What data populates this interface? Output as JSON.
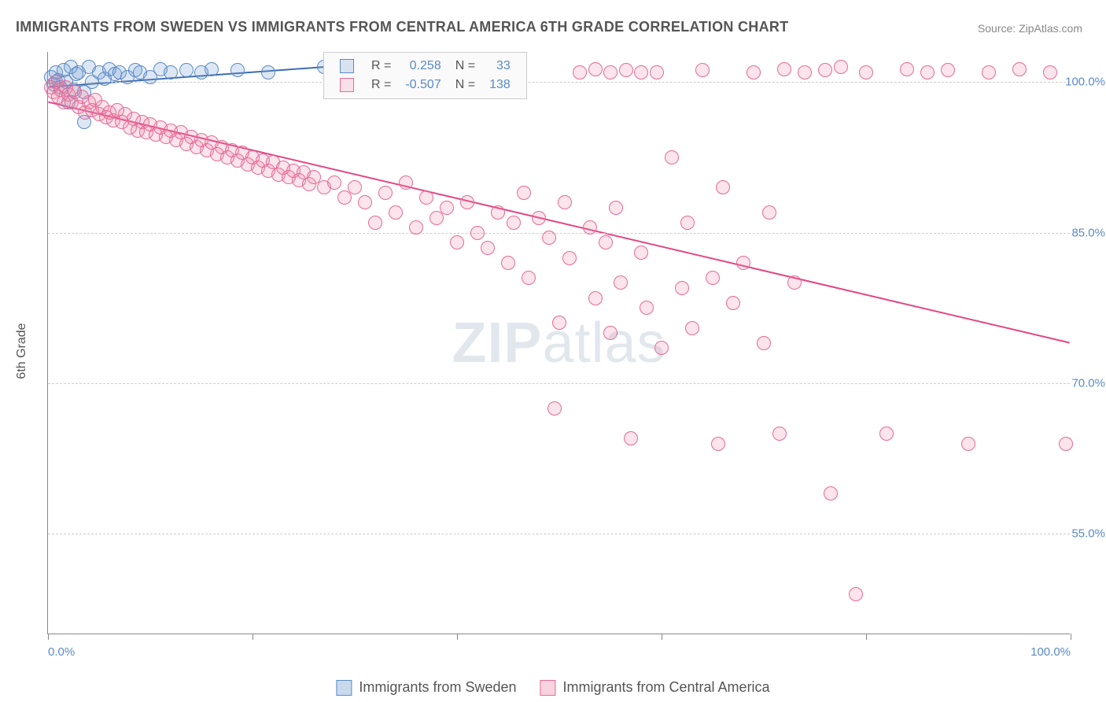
{
  "title": "IMMIGRANTS FROM SWEDEN VS IMMIGRANTS FROM CENTRAL AMERICA 6TH GRADE CORRELATION CHART",
  "source": "Source: ZipAtlas.com",
  "ylabel": "6th Grade",
  "watermark_bold": "ZIP",
  "watermark_rest": "atlas",
  "chart": {
    "type": "scatter",
    "xlim": [
      0,
      100
    ],
    "ylim": [
      45,
      103
    ],
    "yticks": [
      {
        "value": 55.0,
        "label": "55.0%"
      },
      {
        "value": 70.0,
        "label": "70.0%"
      },
      {
        "value": 85.0,
        "label": "85.0%"
      },
      {
        "value": 100.0,
        "label": "100.0%"
      }
    ],
    "xticks": [
      0,
      20,
      40,
      60,
      80,
      100
    ],
    "xtick_labels": {
      "0": "0.0%",
      "100": "100.0%"
    },
    "grid_color": "#cccccc",
    "background_color": "#ffffff",
    "marker_radius": 9,
    "marker_stroke_width": 1.5,
    "series": [
      {
        "name": "Immigrants from Sweden",
        "color_fill": "rgba(120,160,210,0.25)",
        "color_stroke": "#5a8ac7",
        "R": "0.258",
        "N": "33",
        "trend": {
          "x1": 0,
          "y1": 99.5,
          "x2": 27,
          "y2": 101.5,
          "color": "#3d6db3",
          "width": 2
        },
        "points": [
          [
            0.3,
            100.5
          ],
          [
            0.5,
            99.8
          ],
          [
            0.8,
            101
          ],
          [
            1.0,
            100.2
          ],
          [
            1.2,
            99.5
          ],
          [
            1.5,
            101.2
          ],
          [
            1.8,
            100
          ],
          [
            2.0,
            98
          ],
          [
            2.2,
            101.5
          ],
          [
            2.5,
            99.2
          ],
          [
            2.8,
            100.8
          ],
          [
            3.0,
            101
          ],
          [
            3.5,
            99
          ],
          [
            4.0,
            101.5
          ],
          [
            4.3,
            100
          ],
          [
            5.0,
            101
          ],
          [
            5.5,
            100.3
          ],
          [
            6.0,
            101.3
          ],
          [
            6.5,
            100.8
          ],
          [
            7.0,
            101
          ],
          [
            7.8,
            100.5
          ],
          [
            8.5,
            101.2
          ],
          [
            9.0,
            101
          ],
          [
            10.0,
            100.5
          ],
          [
            11.0,
            101.3
          ],
          [
            12.0,
            101
          ],
          [
            13.5,
            101.2
          ],
          [
            15.0,
            101
          ],
          [
            16.0,
            101.3
          ],
          [
            18.5,
            101.2
          ],
          [
            21.5,
            101
          ],
          [
            27.0,
            101.5
          ],
          [
            3.5,
            96
          ]
        ]
      },
      {
        "name": "Immigrants from Central America",
        "color_fill": "rgba(235,130,165,0.22)",
        "color_stroke": "#e56a97",
        "R": "-0.507",
        "N": "138",
        "trend": {
          "x1": 0,
          "y1": 98,
          "x2": 100,
          "y2": 74,
          "color": "#e24585",
          "width": 2
        },
        "points": [
          [
            0.3,
            99.5
          ],
          [
            0.5,
            99
          ],
          [
            0.8,
            100
          ],
          [
            1.0,
            98.5
          ],
          [
            1.2,
            99.2
          ],
          [
            1.5,
            98
          ],
          [
            1.8,
            99.5
          ],
          [
            2.0,
            98.8
          ],
          [
            2.3,
            98
          ],
          [
            2.6,
            99
          ],
          [
            3.0,
            97.5
          ],
          [
            3.3,
            98.5
          ],
          [
            3.6,
            97
          ],
          [
            4.0,
            98
          ],
          [
            4.3,
            97.2
          ],
          [
            4.6,
            98.2
          ],
          [
            5.0,
            96.8
          ],
          [
            5.3,
            97.5
          ],
          [
            5.7,
            96.5
          ],
          [
            6.0,
            97
          ],
          [
            6.4,
            96.2
          ],
          [
            6.8,
            97.2
          ],
          [
            7.2,
            96
          ],
          [
            7.5,
            96.8
          ],
          [
            8.0,
            95.5
          ],
          [
            8.4,
            96.3
          ],
          [
            8.8,
            95.2
          ],
          [
            9.2,
            96
          ],
          [
            9.6,
            95
          ],
          [
            10.0,
            95.8
          ],
          [
            10.5,
            94.8
          ],
          [
            11.0,
            95.5
          ],
          [
            11.5,
            94.5
          ],
          [
            12.0,
            95.2
          ],
          [
            12.5,
            94.2
          ],
          [
            13.0,
            95
          ],
          [
            13.5,
            93.8
          ],
          [
            14.0,
            94.5
          ],
          [
            14.5,
            93.5
          ],
          [
            15.0,
            94.2
          ],
          [
            15.5,
            93.2
          ],
          [
            16.0,
            94
          ],
          [
            16.5,
            92.8
          ],
          [
            17.0,
            93.5
          ],
          [
            17.5,
            92.5
          ],
          [
            18.0,
            93.2
          ],
          [
            18.5,
            92.2
          ],
          [
            19.0,
            93
          ],
          [
            19.5,
            91.8
          ],
          [
            20.0,
            92.5
          ],
          [
            20.5,
            91.5
          ],
          [
            21.0,
            92.2
          ],
          [
            21.5,
            91.2
          ],
          [
            22.0,
            92
          ],
          [
            22.5,
            90.8
          ],
          [
            23.0,
            91.5
          ],
          [
            23.5,
            90.5
          ],
          [
            24.0,
            91.2
          ],
          [
            24.5,
            90.2
          ],
          [
            25.0,
            91
          ],
          [
            25.5,
            89.8
          ],
          [
            26.0,
            90.5
          ],
          [
            27.0,
            89.5
          ],
          [
            28.0,
            90
          ],
          [
            29.0,
            88.5
          ],
          [
            30.0,
            89.5
          ],
          [
            31.0,
            88
          ],
          [
            32.0,
            86
          ],
          [
            33.0,
            89
          ],
          [
            34.0,
            87
          ],
          [
            35.0,
            90
          ],
          [
            36.0,
            85.5
          ],
          [
            37.0,
            88.5
          ],
          [
            38.0,
            86.5
          ],
          [
            39.0,
            87.5
          ],
          [
            40.0,
            84
          ],
          [
            41.0,
            88
          ],
          [
            42.0,
            85
          ],
          [
            43.0,
            83.5
          ],
          [
            44.0,
            87
          ],
          [
            45.0,
            82
          ],
          [
            45.5,
            86
          ],
          [
            46.5,
            89
          ],
          [
            47.0,
            80.5
          ],
          [
            48.0,
            86.5
          ],
          [
            49.0,
            84.5
          ],
          [
            49.5,
            67.5
          ],
          [
            50.0,
            76
          ],
          [
            50.5,
            88
          ],
          [
            51.0,
            82.5
          ],
          [
            52.0,
            101
          ],
          [
            53.0,
            85.5
          ],
          [
            53.5,
            78.5
          ],
          [
            54.5,
            84
          ],
          [
            55.0,
            75
          ],
          [
            55.5,
            87.5
          ],
          [
            56.0,
            80
          ],
          [
            57.0,
            64.5
          ],
          [
            58.0,
            83
          ],
          [
            58.5,
            77.5
          ],
          [
            59.5,
            101
          ],
          [
            60.0,
            73.5
          ],
          [
            61.0,
            92.5
          ],
          [
            62.0,
            79.5
          ],
          [
            62.5,
            86
          ],
          [
            63.0,
            75.5
          ],
          [
            64.0,
            101.2
          ],
          [
            65.0,
            80.5
          ],
          [
            65.5,
            64
          ],
          [
            66.0,
            89.5
          ],
          [
            67.0,
            78
          ],
          [
            68.0,
            82
          ],
          [
            69.0,
            101
          ],
          [
            70.0,
            74
          ],
          [
            70.5,
            87
          ],
          [
            71.5,
            65
          ],
          [
            72.0,
            101.3
          ],
          [
            73.0,
            80
          ],
          [
            74.0,
            101
          ],
          [
            76.0,
            101.2
          ],
          [
            76.5,
            59
          ],
          [
            77.5,
            101.5
          ],
          [
            79.0,
            49
          ],
          [
            80.0,
            101
          ],
          [
            82.0,
            65
          ],
          [
            84.0,
            101.3
          ],
          [
            86.0,
            101
          ],
          [
            88.0,
            101.2
          ],
          [
            90.0,
            64
          ],
          [
            92.0,
            101
          ],
          [
            95.0,
            101.3
          ],
          [
            98.0,
            101
          ],
          [
            99.5,
            64
          ],
          [
            53.5,
            101.3
          ],
          [
            55.0,
            101
          ],
          [
            56.5,
            101.2
          ],
          [
            58.0,
            101
          ],
          [
            42.5,
            101.2
          ]
        ]
      }
    ]
  },
  "legend_labels": {
    "R_prefix": "R =",
    "N_prefix": "N ="
  },
  "bottom_legend": [
    {
      "label": "Immigrants from Sweden",
      "fill": "rgba(120,160,210,0.4)",
      "stroke": "#5a8ac7"
    },
    {
      "label": "Immigrants from Central America",
      "fill": "rgba(235,130,165,0.35)",
      "stroke": "#e56a97"
    }
  ]
}
